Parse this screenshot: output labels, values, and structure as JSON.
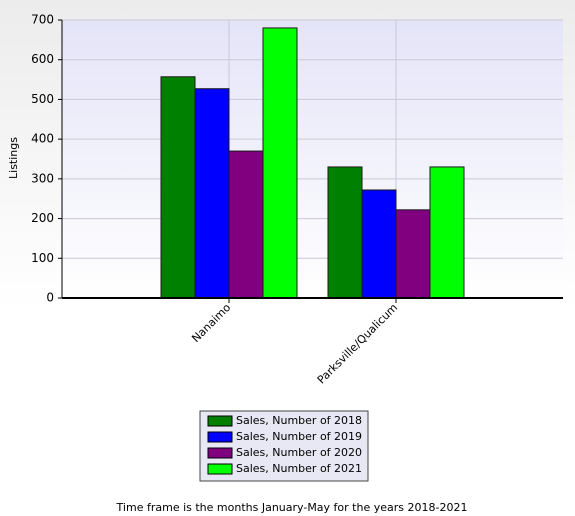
{
  "chart_data": {
    "type": "bar",
    "y_label": "Listings",
    "categories": [
      "Nanaimo",
      "Parksville/Qualicum"
    ],
    "series": [
      {
        "name": "Sales, Number of 2018",
        "color": "#008000",
        "values": [
          557,
          330
        ]
      },
      {
        "name": "Sales, Number of 2019",
        "color": "#0000ff",
        "values": [
          527,
          272
        ]
      },
      {
        "name": "Sales, Number of 2020",
        "color": "#800080",
        "values": [
          370,
          222
        ]
      },
      {
        "name": "Sales, Number of 2021",
        "color": "#00ff00",
        "values": [
          680,
          330
        ]
      }
    ],
    "ylim": [
      0,
      700
    ],
    "yticks": [
      0,
      100,
      200,
      300,
      400,
      500,
      600,
      700
    ],
    "grid": true,
    "legend_position": "bottom",
    "footnote": "Time frame is the months January-May for the years 2018-2021"
  }
}
